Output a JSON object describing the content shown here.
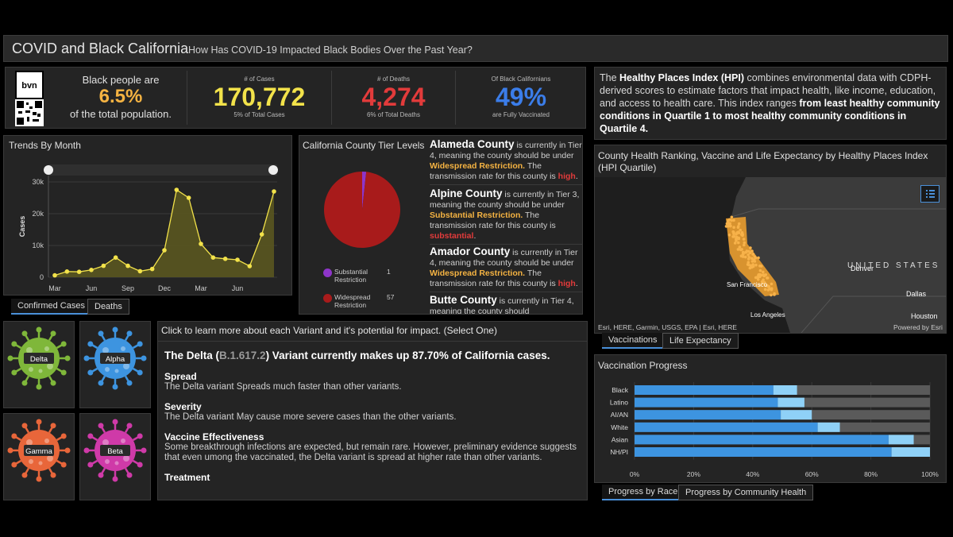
{
  "header": {
    "title": "COVID and Black California",
    "subtitle": "How Has COVID-19 Impacted Black Bodies Over the Past Year?"
  },
  "logo": {
    "text": "bvn"
  },
  "stats": {
    "population": {
      "line1": "Black people are",
      "value": "6.5%",
      "line2": "of the total population.",
      "color": "#f5b342"
    },
    "cases": {
      "label": "# of Cases",
      "value": "170,772",
      "sub": "5% of Total Cases",
      "color": "#f2e24a"
    },
    "deaths": {
      "label": "# of Deaths",
      "value": "4,274",
      "sub": "6% of Total Deaths",
      "color": "#e23b3b"
    },
    "vaccinated": {
      "label": "Of Black Californians",
      "value": "49%",
      "sub": "are Fully Vaccinated",
      "color": "#3b7de9"
    }
  },
  "trends": {
    "title": "Trends By Month",
    "tabs": [
      "Confirmed Cases",
      "Deaths"
    ],
    "chart_data": {
      "type": "area",
      "ylabel": "Cases",
      "yticks": [
        "0",
        "10k",
        "20k",
        "30k"
      ],
      "ylim": [
        0,
        32000
      ],
      "xticks": [
        "Mar",
        "Jun",
        "Sep",
        "Dec",
        "Mar",
        "Jun"
      ],
      "values": [
        600,
        1800,
        1700,
        2300,
        3600,
        6200,
        3600,
        1900,
        2600,
        8500,
        27500,
        25000,
        10500,
        6200,
        5800,
        5500,
        3500,
        13500,
        27000
      ],
      "color": "#f2e24a"
    }
  },
  "county": {
    "title": "California County Tier Levels",
    "chart_data": {
      "type": "pie",
      "slices": [
        {
          "label": "Substantial Restriction",
          "value": 1,
          "color": "#8e35c9"
        },
        {
          "label": "Widespread Restriction",
          "value": 57,
          "color": "#a81b1b"
        }
      ]
    },
    "legend": [
      {
        "l1": "Substantial",
        "l2": "Restriction",
        "n": "1"
      },
      {
        "l1": "Widespread",
        "l2": "Restriction",
        "n": "57"
      }
    ],
    "items": [
      {
        "name": "Alameda County",
        "t1": " is currently in Tier 4, meaning the county should be under ",
        "restriction": "Widespread Restriction.",
        "t2": " The transmission rate for this county is ",
        "rate": "high",
        "end": "."
      },
      {
        "name": "Alpine County",
        "t1": " is currently in Tier 3, meaning the county should be under ",
        "restriction": "Substantial Restriction.",
        "t2": " The transmission rate for this county is ",
        "rate": "substantial",
        "end": "."
      },
      {
        "name": "Amador County",
        "t1": " is currently in Tier 4, meaning the county should be under ",
        "restriction": "Widespread Restriction.",
        "t2": " The transmission rate for this county is ",
        "rate": "high",
        "end": "."
      },
      {
        "name": "Butte County",
        "t1": " is currently in Tier 4, meaning the county should",
        "restriction": "",
        "t2": "",
        "rate": "",
        "end": ""
      }
    ]
  },
  "hpi": {
    "p1": "The ",
    "b1": "Healthy Places Index (HPI)",
    "p2": " combines environmental data with CDPH-derived scores to estimate factors that impact health, like income, education, and access to health care. This index ranges ",
    "b2": "from least healthy community conditions in Quartile 1 to most healthy community conditions in Quartile 4."
  },
  "map": {
    "title": "County Health Ranking, Vaccine and Life Expectancy by Healthy Places Index (HPI Quartile)",
    "labels": {
      "us": "UNITED STATES",
      "denver": "Denver",
      "sf": "San Francisco",
      "la": "Los Angeles",
      "dallas": "Dallas",
      "houston": "Houston"
    },
    "attribution": "Esri, HERE, Garmin, USGS, EPA | Esri, HERE",
    "powered": "Powered by Esri",
    "tabs": [
      "Vaccinations",
      "Life Expectancy"
    ]
  },
  "variants": {
    "cards": [
      {
        "name": "Delta",
        "color": "#7fb73a"
      },
      {
        "name": "Alpha",
        "color": "#3d94e0"
      },
      {
        "name": "Gamma",
        "color": "#e8663a"
      },
      {
        "name": "Beta",
        "color": "#cf3aa8"
      }
    ],
    "heading": "Click to learn more about each Variant and it's potential for impact. (Select One)",
    "headline_a": "The Delta (",
    "headline_code": "B.1.617.2",
    "headline_b": ") Variant currently makes up 87.70% of California cases.",
    "spread_h": "Spread",
    "spread_t": "The Delta variant Spreads much faster than other variants.",
    "severity_h": "Severity",
    "severity_t": "The Delta variant May cause more severe cases than the other variants.",
    "vaccine_h": "Vaccine Effectiveness",
    "vaccine_t": "Some breakthrough infections are expected, but remain rare. However, preliminary evidence suggests that even umong the vaccinated, the Delta variant is spread at higher rate than other variants.",
    "treatment_h": "Treatment"
  },
  "vaccination": {
    "title": "Vaccination Progress",
    "tabs": [
      "Progress by Race",
      "Progress by Community Health"
    ],
    "chart_data": {
      "type": "bar",
      "categories": [
        "Black",
        "Latino",
        "AI/AN",
        "White",
        "Asian",
        "NH/PI"
      ],
      "series": [
        {
          "values": [
            47,
            48.5,
            49.5,
            62,
            86,
            87
          ],
          "color": "#3d94e0"
        },
        {
          "values": [
            8,
            9,
            10.5,
            7.5,
            8.5,
            13
          ],
          "color": "#8fd1f7"
        }
      ],
      "xticks": [
        "0%",
        "20%",
        "40%",
        "60%",
        "80%",
        "100%"
      ],
      "xlim": [
        0,
        100
      ],
      "remainder_color": "#5a5a5a"
    }
  }
}
